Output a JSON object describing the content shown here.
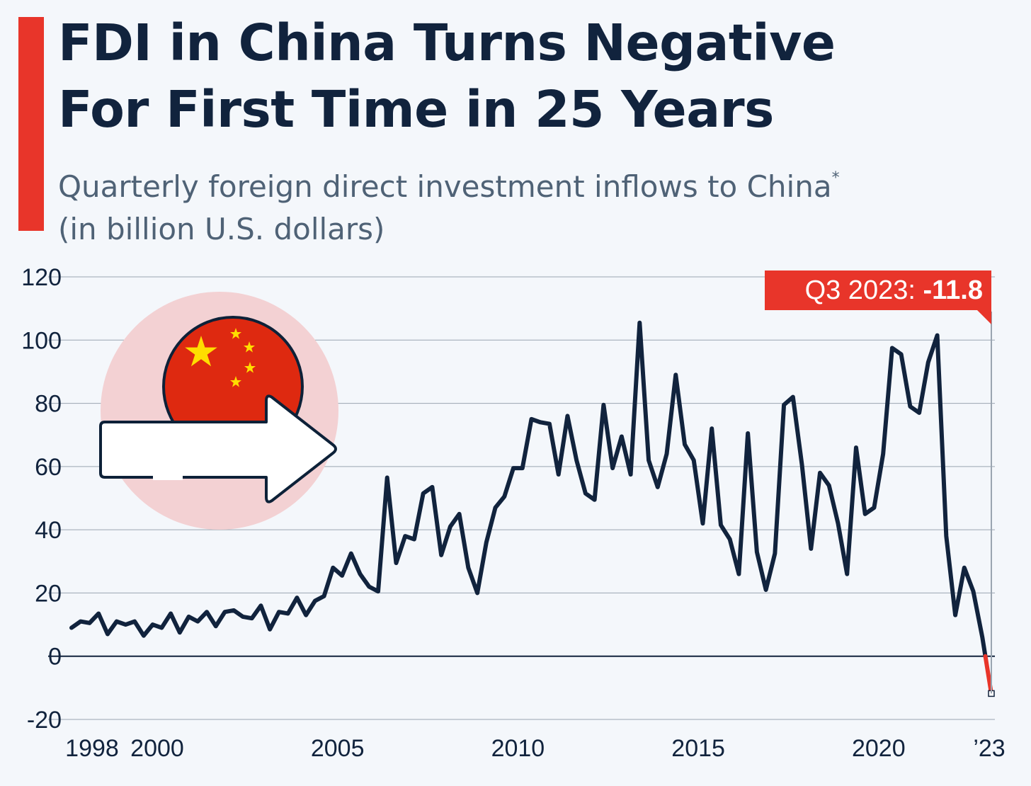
{
  "header": {
    "title_line1": "FDI in China Turns Negative",
    "title_line2": "For First Time in 25 Years",
    "subtitle_line1": "Quarterly foreign direct investment inflows to China",
    "subtitle_footnote_mark": "*",
    "subtitle_line2": "(in billion U.S. dollars)"
  },
  "colors": {
    "accent": "#e8352a",
    "line": "#11233d",
    "negative_segment": "#e8352a",
    "text": "#11233d",
    "subtitle": "#4f6276",
    "grid": "#9aa5b1",
    "badge_circle": "#f3d1d3",
    "flag_red": "#de2910",
    "flag_star": "#ffde00"
  },
  "icons": [
    "china-flag-icon",
    "arrow-right-icon"
  ],
  "chart_data": {
    "type": "line",
    "title": "FDI in China Turns Negative For First Time in 25 Years",
    "subtitle": "Quarterly foreign direct investment inflows to China* (in billion U.S. dollars)",
    "xlabel": "",
    "ylabel": "",
    "ylim": [
      -20,
      120
    ],
    "yticks": [
      120,
      100,
      80,
      60,
      40,
      20,
      0,
      -20
    ],
    "grid": true,
    "x_start": "Q1 1998",
    "x_end": "Q3 2023",
    "xtick_labels": [
      "1998",
      "2000",
      "2005",
      "2010",
      "2015",
      "2020",
      "’23"
    ],
    "annotation": {
      "label": "Q3 2023: ",
      "value_text": "-11.8",
      "x": "Q3 2023",
      "y": -11.8
    },
    "series": [
      {
        "values": [
          9,
          11,
          10.5,
          13.5,
          7,
          11,
          10,
          11,
          6.5,
          10,
          9,
          13.5,
          7.5,
          12.5,
          11,
          14,
          9.5,
          14,
          14.5,
          12.5,
          12,
          16,
          8.5,
          14,
          13.5,
          18.5,
          13,
          17.5,
          19,
          28,
          25.5,
          32.5,
          26,
          22,
          20.5,
          56.5,
          29.5,
          38,
          37,
          51.5,
          53.5,
          32,
          41,
          45,
          28,
          20,
          36,
          47,
          50.5,
          59.5,
          59.5,
          75,
          74,
          73.5,
          57.5,
          76,
          62,
          51.5,
          49.5,
          79.5,
          59.5,
          69.5,
          57.5,
          105.5,
          62,
          53.5,
          64,
          89,
          67,
          62,
          42,
          72,
          41.5,
          37,
          26,
          70.5,
          33,
          21,
          32.5,
          79.5,
          82,
          60.5,
          34,
          58,
          54,
          42,
          26,
          66,
          45,
          47,
          64,
          97.5,
          95.5,
          79,
          77,
          93,
          101.5,
          38,
          13,
          28,
          20.5,
          6,
          -11.8
        ]
      }
    ]
  }
}
